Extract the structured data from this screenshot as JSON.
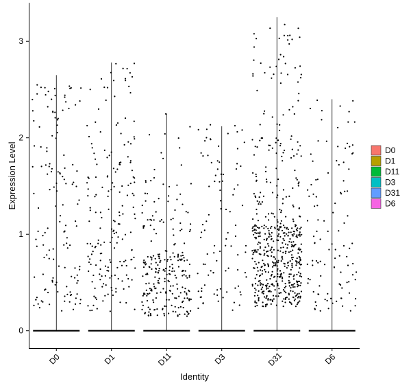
{
  "chart_data": {
    "type": "violin-jitter",
    "title": "",
    "xlabel": "Identity",
    "ylabel": "Expression Level",
    "categories": [
      "D0",
      "D1",
      "D11",
      "D3",
      "D31",
      "D6"
    ],
    "ylim": [
      -0.18,
      3.4
    ],
    "yticks": [
      0,
      1,
      2,
      3
    ],
    "grid": false,
    "legend_position": "right",
    "legend": [
      {
        "label": "D0",
        "color": "#F8766D"
      },
      {
        "label": "D1",
        "color": "#B79F00"
      },
      {
        "label": "D11",
        "color": "#00BA38"
      },
      {
        "label": "D3",
        "color": "#00BFC4"
      },
      {
        "label": "D31",
        "color": "#619CFF"
      },
      {
        "label": "D6",
        "color": "#F564E3"
      }
    ],
    "series": [
      {
        "category": "D0",
        "max": 2.65,
        "nonzero_points": 140,
        "bands": [
          [
            0.2,
            1.0,
            0.45
          ],
          [
            1.0,
            2.0,
            0.35
          ],
          [
            2.0,
            2.65,
            0.2
          ]
        ]
      },
      {
        "category": "D1",
        "max": 2.78,
        "nonzero_points": 190,
        "bands": [
          [
            0.2,
            1.0,
            0.45
          ],
          [
            1.0,
            2.0,
            0.4
          ],
          [
            2.0,
            2.8,
            0.15
          ]
        ]
      },
      {
        "category": "D11",
        "max": 2.25,
        "nonzero_points": 260,
        "bands": [
          [
            0.15,
            0.8,
            0.75
          ],
          [
            0.8,
            1.6,
            0.2
          ],
          [
            1.6,
            2.3,
            0.05
          ]
        ]
      },
      {
        "category": "D3",
        "max": 2.12,
        "nonzero_points": 95,
        "bands": [
          [
            0.2,
            1.0,
            0.55
          ],
          [
            1.0,
            2.15,
            0.45
          ]
        ]
      },
      {
        "category": "D31",
        "max": 3.25,
        "nonzero_points": 560,
        "bands": [
          [
            0.25,
            1.1,
            0.75
          ],
          [
            1.1,
            2.0,
            0.17
          ],
          [
            2.0,
            3.25,
            0.08
          ]
        ]
      },
      {
        "category": "D6",
        "max": 2.4,
        "nonzero_points": 110,
        "bands": [
          [
            0.2,
            1.0,
            0.6
          ],
          [
            1.0,
            2.4,
            0.4
          ]
        ]
      }
    ]
  }
}
